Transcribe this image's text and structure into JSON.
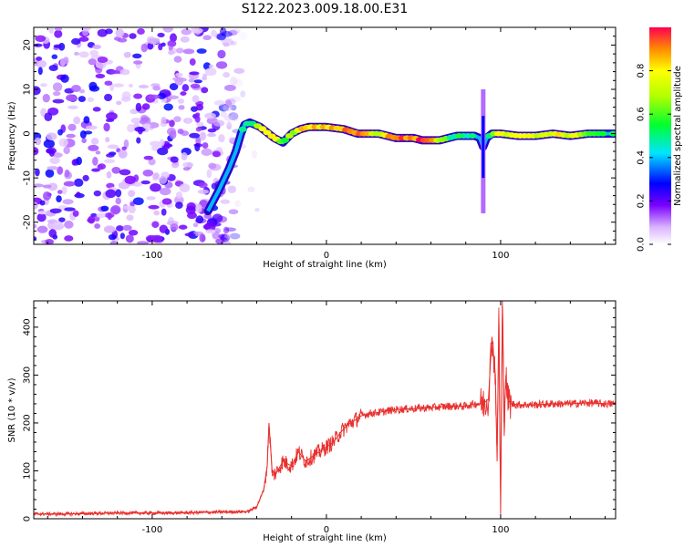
{
  "title": "S122.2023.009.18.00.E31",
  "colorbar": {
    "label": "Normalized spectral amplitude",
    "ticks": [
      "0.0",
      "0.2",
      "0.4",
      "0.6",
      "0.8"
    ],
    "tick_values": [
      0.0,
      0.2,
      0.4,
      0.6,
      0.8
    ],
    "range": [
      0,
      1
    ]
  },
  "chart_data": [
    {
      "type": "heatmap",
      "xlabel": "Height of straight line (km)",
      "ylabel": "Frequency (Hz)",
      "xlim": [
        -168,
        166
      ],
      "ylim": [
        -25,
        24
      ],
      "xticks": [
        -100,
        0,
        100
      ],
      "xtick_labels": [
        "-100",
        "0",
        "100"
      ],
      "yticks": [
        -20,
        -10,
        0,
        10,
        20
      ],
      "ytick_labels": [
        "-20",
        "-10",
        "0",
        "10",
        "20"
      ],
      "ridge": {
        "x": [
          -68,
          -62,
          -56,
          -52,
          -49,
          -47,
          -44,
          -38,
          -30,
          -25,
          -20,
          -15,
          -10,
          0,
          10,
          18,
          30,
          40,
          50,
          55,
          60,
          65,
          70,
          75,
          80,
          85,
          88,
          90,
          92,
          95,
          100,
          110,
          120,
          130,
          140,
          150,
          160,
          166
        ],
        "freq": [
          -17.5,
          -13,
          -8,
          -4,
          0,
          2,
          2.5,
          1.5,
          -1,
          -2,
          0,
          1,
          1.5,
          1.5,
          1,
          0,
          0,
          -1,
          -1,
          -1.5,
          -1.5,
          -1.5,
          -1,
          -0.5,
          -0.5,
          -0.5,
          -1,
          -3,
          -1,
          0,
          0,
          -0.5,
          -0.5,
          0,
          -0.5,
          0,
          0,
          0
        ],
        "amplitude": [
          0.3,
          0.3,
          0.35,
          0.3,
          0.4,
          0.45,
          0.5,
          0.8,
          0.75,
          0.6,
          0.65,
          0.8,
          0.85,
          0.8,
          0.9,
          0.95,
          0.7,
          0.95,
          0.9,
          0.95,
          0.95,
          0.7,
          0.55,
          0.5,
          0.5,
          0.55,
          0.4,
          0.3,
          0.35,
          0.7,
          0.75,
          0.85,
          0.7,
          0.8,
          0.75,
          0.65,
          0.5,
          0.45
        ]
      },
      "noise_region_x": [
        -168,
        -50
      ],
      "spike": {
        "x": 90,
        "freq_range": [
          -18,
          10
        ]
      }
    },
    {
      "type": "line",
      "xlabel": "Height of straight line (km)",
      "ylabel": "SNR (10 * v/v)",
      "xlim": [
        -168,
        166
      ],
      "ylim": [
        0,
        455
      ],
      "xticks": [
        -100,
        0,
        100
      ],
      "xtick_labels": [
        "-100",
        "0",
        "100"
      ],
      "yticks": [
        0,
        100,
        200,
        300,
        400
      ],
      "ytick_labels": [
        "0",
        "100",
        "200",
        "300",
        "400"
      ],
      "line_color": "#e8302e",
      "x": [
        -168,
        -150,
        -120,
        -90,
        -60,
        -45,
        -40,
        -36,
        -34,
        -33,
        -31,
        -28,
        -25,
        -20,
        -16,
        -12,
        -8,
        -4,
        0,
        4,
        8,
        12,
        16,
        20,
        25,
        30,
        35,
        40,
        50,
        60,
        70,
        80,
        85,
        90,
        93,
        95,
        97,
        98,
        99,
        100,
        101,
        102,
        103,
        104,
        106,
        110,
        120,
        130,
        140,
        150,
        160,
        166
      ],
      "y": [
        10,
        10,
        12,
        12,
        14,
        15,
        25,
        60,
        110,
        200,
        90,
        100,
        120,
        110,
        140,
        120,
        130,
        140,
        150,
        160,
        180,
        195,
        205,
        215,
        220,
        222,
        225,
        228,
        230,
        232,
        235,
        235,
        240,
        240,
        250,
        380,
        300,
        120,
        430,
        10,
        455,
        200,
        300,
        250,
        240,
        238,
        238,
        240,
        240,
        242,
        240,
        240
      ]
    }
  ]
}
